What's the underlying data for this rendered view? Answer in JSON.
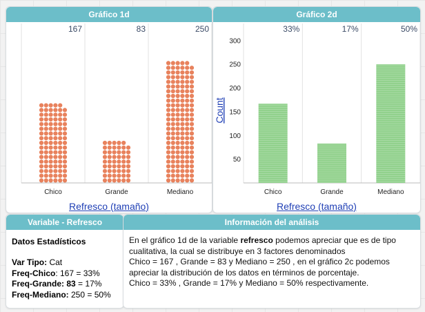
{
  "colors": {
    "header_bg": "#6cbec9",
    "chart1_dots": "#e8825d",
    "chart2_bars": "#8fd08a",
    "axis_caption": "#1f3fb5",
    "gridline": "#e1e1e1",
    "value_label": "#3a4a66"
  },
  "panel1": {
    "title": "Gráfico 1d"
  },
  "panel2": {
    "title": "Gráfico 2d"
  },
  "panel3": {
    "title": "Variable - Refresco",
    "heading": "Datos Estadísticos",
    "var_tipo_label": "Var Tipo:",
    "var_tipo_value": " Cat",
    "freq_chico_label": "Freq-Chico",
    "freq_chico_value": ": 167 = 33%",
    "freq_grande_label": "Freq-Grande: 83",
    "freq_grande_value": " = 17%",
    "freq_mediano_label": "Freq-Mediano:",
    "freq_mediano_value": "  250 = 50%"
  },
  "panel4": {
    "title": "Información del análisis",
    "p1_before": "En el gráfico 1d  de la variable ",
    "p1_bold": "refresco",
    "p1_after": " podemos apreciar que es de tipo cualitativa, la cual se distribuye en 3 factores denominados",
    "p2": "Chico = 167 , Grande = 83  y Mediano = 250 , en el gráfico 2c podemos apreciar la distribución de los datos en términos de porcentaje.",
    "p3": "Chico = 33% , Grande = 17%  y Mediano = 50% respectivamente."
  },
  "chart_data": [
    {
      "type": "bar",
      "style": "dot-stack",
      "categories": [
        "Chico",
        "Grande",
        "Mediano"
      ],
      "values": [
        167,
        83,
        250
      ],
      "value_labels": [
        "167",
        "83",
        "250"
      ],
      "xlabel": "Refresco (tamaño)",
      "ylabel": "",
      "ylim": [
        0,
        300
      ],
      "grid": "vertical"
    },
    {
      "type": "bar",
      "categories": [
        "Chico",
        "Grande",
        "Mediano"
      ],
      "values": [
        167,
        83,
        250
      ],
      "value_labels": [
        "33%",
        "17%",
        "50%"
      ],
      "xlabel": "Refresco (tamaño)",
      "ylabel": "Count",
      "yticks": [
        50,
        100,
        150,
        200,
        250,
        300
      ],
      "ylim": [
        0,
        310
      ],
      "grid": "vertical"
    }
  ]
}
